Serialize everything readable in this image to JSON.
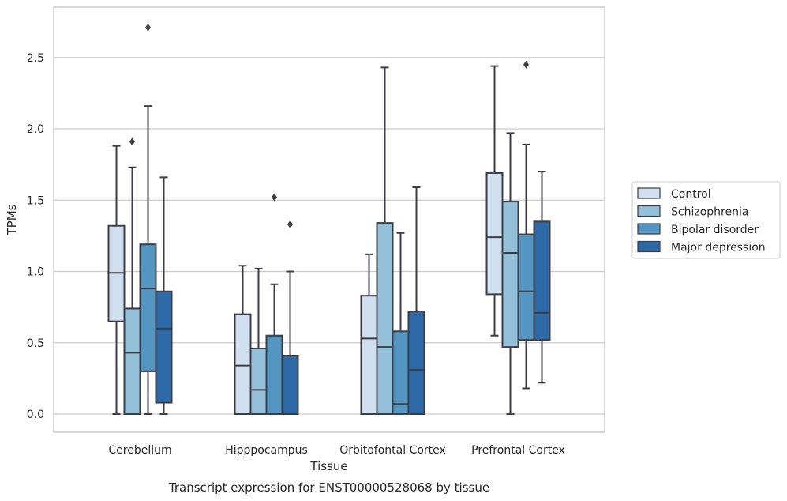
{
  "chart_data": {
    "type": "boxplot",
    "xlabel": "Tissue",
    "ylabel": "TPMs",
    "caption": "Transcript expression for ENST00000528068 by tissue",
    "ylim": [
      -0.13,
      2.85
    ],
    "yticks": [
      0.0,
      0.5,
      1.0,
      1.5,
      2.0,
      2.5
    ],
    "ytick_labels": [
      "0.0",
      "0.5",
      "1.0",
      "1.5",
      "2.0",
      "2.5"
    ],
    "grid": "horizontal",
    "legend_position": "right",
    "categories": [
      "Cerebellum",
      "Hipppocampus",
      "Orbitofontal Cortex",
      "Prefrontal Cortex"
    ],
    "series": [
      {
        "name": "Control",
        "color": "#d1e0f0",
        "boxes": [
          {
            "whislo": 0.0,
            "q1": 0.65,
            "med": 0.99,
            "q3": 1.32,
            "whishi": 1.88,
            "fliers": []
          },
          {
            "whislo": 0.0,
            "q1": 0.0,
            "med": 0.34,
            "q3": 0.7,
            "whishi": 1.04,
            "fliers": []
          },
          {
            "whislo": 0.0,
            "q1": 0.0,
            "med": 0.53,
            "q3": 0.83,
            "whishi": 1.12,
            "fliers": []
          },
          {
            "whislo": 0.55,
            "q1": 0.84,
            "med": 1.24,
            "q3": 1.69,
            "whishi": 2.44,
            "fliers": []
          }
        ]
      },
      {
        "name": "Schizophrenia",
        "color": "#94c1d9",
        "boxes": [
          {
            "whislo": 0.0,
            "q1": 0.0,
            "med": 0.43,
            "q3": 0.74,
            "whishi": 1.73,
            "fliers": [
              1.91
            ]
          },
          {
            "whislo": 0.0,
            "q1": 0.0,
            "med": 0.17,
            "q3": 0.46,
            "whishi": 1.02,
            "fliers": []
          },
          {
            "whislo": 0.0,
            "q1": 0.0,
            "med": 0.47,
            "q3": 1.34,
            "whishi": 2.43,
            "fliers": []
          },
          {
            "whislo": 0.0,
            "q1": 0.47,
            "med": 1.13,
            "q3": 1.49,
            "whishi": 1.97,
            "fliers": []
          }
        ]
      },
      {
        "name": "Bipolar disorder",
        "color": "#5495c1",
        "boxes": [
          {
            "whislo": 0.0,
            "q1": 0.3,
            "med": 0.88,
            "q3": 1.19,
            "whishi": 2.16,
            "fliers": [
              2.71
            ]
          },
          {
            "whislo": 0.0,
            "q1": 0.0,
            "med": 0.0,
            "q3": 0.55,
            "whishi": 0.91,
            "fliers": [
              1.52
            ]
          },
          {
            "whislo": 0.0,
            "q1": 0.0,
            "med": 0.07,
            "q3": 0.58,
            "whishi": 1.27,
            "fliers": []
          },
          {
            "whislo": 0.18,
            "q1": 0.52,
            "med": 0.86,
            "q3": 1.26,
            "whishi": 1.89,
            "fliers": [
              2.45
            ]
          }
        ]
      },
      {
        "name": "Major depression",
        "color": "#2c69a6",
        "boxes": [
          {
            "whislo": 0.0,
            "q1": 0.08,
            "med": 0.6,
            "q3": 0.86,
            "whishi": 1.66,
            "fliers": []
          },
          {
            "whislo": 0.0,
            "q1": 0.0,
            "med": 0.0,
            "q3": 0.41,
            "whishi": 1.0,
            "fliers": [
              1.33
            ]
          },
          {
            "whislo": 0.0,
            "q1": 0.0,
            "med": 0.31,
            "q3": 0.72,
            "whishi": 1.59,
            "fliers": []
          },
          {
            "whislo": 0.22,
            "q1": 0.52,
            "med": 0.71,
            "q3": 1.35,
            "whishi": 1.7,
            "fliers": []
          }
        ]
      }
    ]
  }
}
